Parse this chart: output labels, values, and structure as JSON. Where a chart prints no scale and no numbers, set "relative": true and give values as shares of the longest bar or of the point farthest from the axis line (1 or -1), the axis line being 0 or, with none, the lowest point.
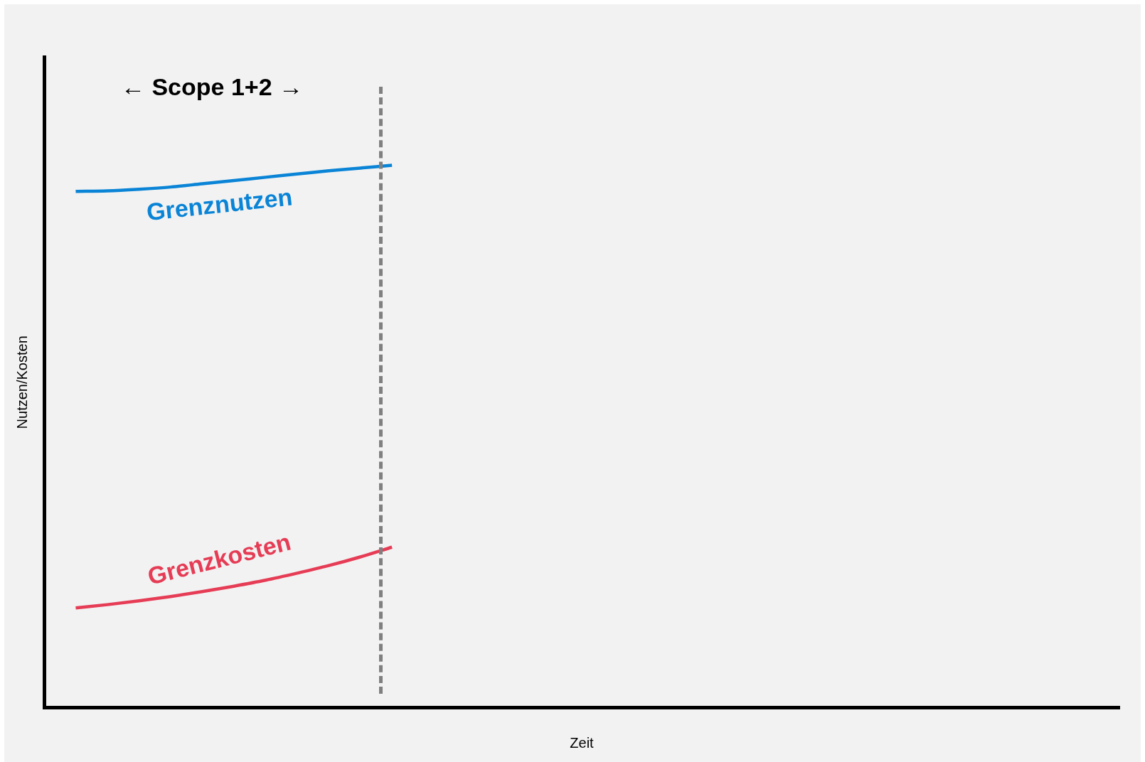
{
  "chart_data": {
    "type": "line",
    "relative": true,
    "xlabel": "Zeit",
    "ylabel": "Nutzen/Kosten",
    "categories": [
      null,
      null,
      null,
      null,
      null,
      null,
      null,
      null,
      null,
      null,
      null,
      null,
      null,
      null,
      null,
      null,
      null,
      null,
      null,
      null,
      null,
      null,
      null,
      null,
      null,
      null,
      null,
      null,
      null,
      null,
      null,
      null,
      null,
      null,
      null
    ],
    "series": [
      {
        "name": "Grenznutzen",
        "color": "#0a84d6",
        "values": [
          null,
          0.952,
          0.953,
          0.956,
          0.96,
          0.966,
          0.972,
          0.978,
          0.984,
          0.99,
          0.995,
          1.0,
          null,
          null,
          null,
          null,
          null,
          null,
          null,
          null,
          null,
          null,
          null,
          null,
          null,
          null,
          null,
          null,
          null,
          null,
          null,
          null,
          null,
          null,
          null
        ]
      },
      {
        "name": "Grenzkosten",
        "color": "#e63c55",
        "values": [
          null,
          0.184,
          0.19,
          0.197,
          0.205,
          0.214,
          0.224,
          0.235,
          0.248,
          0.262,
          0.278,
          0.296,
          null,
          null,
          null,
          null,
          null,
          null,
          null,
          null,
          null,
          null,
          null,
          null,
          null,
          null,
          null,
          null,
          null,
          null,
          null,
          null,
          null,
          null,
          null
        ]
      }
    ],
    "annotations": [
      "← Scope 1+2 →"
    ],
    "grid": false,
    "legend": false,
    "marker": "none",
    "line_style": "solid"
  }
}
